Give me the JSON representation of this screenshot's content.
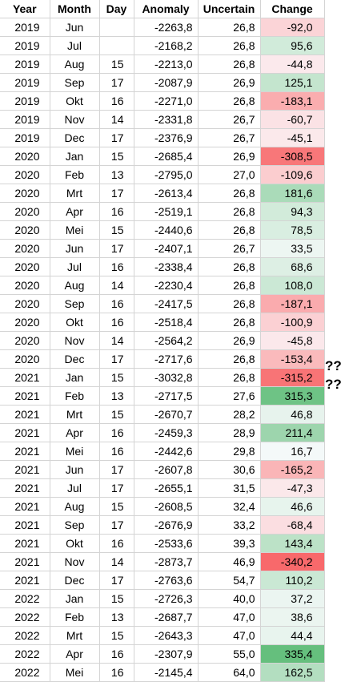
{
  "headers": [
    "Year",
    "Month",
    "Day",
    "Anomaly",
    "Uncertain",
    "Change"
  ],
  "rows": [
    [
      "2019",
      "Jun",
      "",
      "-2263,8",
      "26,8",
      "-92,0"
    ],
    [
      "2019",
      "Jul",
      "",
      "-2168,2",
      "26,8",
      "95,6"
    ],
    [
      "2019",
      "Aug",
      "15",
      "-2213,0",
      "26,8",
      "-44,8"
    ],
    [
      "2019",
      "Sep",
      "17",
      "-2087,9",
      "26,9",
      "125,1"
    ],
    [
      "2019",
      "Okt",
      "16",
      "-2271,0",
      "26,8",
      "-183,1"
    ],
    [
      "2019",
      "Nov",
      "14",
      "-2331,8",
      "26,7",
      "-60,7"
    ],
    [
      "2019",
      "Dec",
      "17",
      "-2376,9",
      "26,7",
      "-45,1"
    ],
    [
      "2020",
      "Jan",
      "15",
      "-2685,4",
      "26,9",
      "-308,5"
    ],
    [
      "2020",
      "Feb",
      "13",
      "-2795,0",
      "27,0",
      "-109,6"
    ],
    [
      "2020",
      "Mrt",
      "17",
      "-2613,4",
      "26,8",
      "181,6"
    ],
    [
      "2020",
      "Apr",
      "16",
      "-2519,1",
      "26,8",
      "94,3"
    ],
    [
      "2020",
      "Mei",
      "15",
      "-2440,6",
      "26,8",
      "78,5"
    ],
    [
      "2020",
      "Jun",
      "17",
      "-2407,1",
      "26,7",
      "33,5"
    ],
    [
      "2020",
      "Jul",
      "16",
      "-2338,4",
      "26,8",
      "68,6"
    ],
    [
      "2020",
      "Aug",
      "14",
      "-2230,4",
      "26,8",
      "108,0"
    ],
    [
      "2020",
      "Sep",
      "16",
      "-2417,5",
      "26,8",
      "-187,1"
    ],
    [
      "2020",
      "Okt",
      "16",
      "-2518,4",
      "26,8",
      "-100,9"
    ],
    [
      "2020",
      "Nov",
      "14",
      "-2564,2",
      "26,9",
      "-45,8"
    ],
    [
      "2020",
      "Dec",
      "17",
      "-2717,6",
      "26,8",
      "-153,4"
    ],
    [
      "2021",
      "Jan",
      "15",
      "-3032,8",
      "26,8",
      "-315,2"
    ],
    [
      "2021",
      "Feb",
      "13",
      "-2717,5",
      "27,6",
      "315,3"
    ],
    [
      "2021",
      "Mrt",
      "15",
      "-2670,7",
      "28,2",
      "46,8"
    ],
    [
      "2021",
      "Apr",
      "16",
      "-2459,3",
      "28,9",
      "211,4"
    ],
    [
      "2021",
      "Mei",
      "16",
      "-2442,6",
      "29,8",
      "16,7"
    ],
    [
      "2021",
      "Jun",
      "17",
      "-2607,8",
      "30,6",
      "-165,2"
    ],
    [
      "2021",
      "Jul",
      "17",
      "-2655,1",
      "31,5",
      "-47,3"
    ],
    [
      "2021",
      "Aug",
      "15",
      "-2608,5",
      "32,4",
      "46,6"
    ],
    [
      "2021",
      "Sep",
      "17",
      "-2676,9",
      "33,2",
      "-68,4"
    ],
    [
      "2021",
      "Okt",
      "16",
      "-2533,6",
      "39,3",
      "143,4"
    ],
    [
      "2021",
      "Nov",
      "14",
      "-2873,7",
      "46,9",
      "-340,2"
    ],
    [
      "2021",
      "Dec",
      "17",
      "-2763,6",
      "54,7",
      "110,2"
    ],
    [
      "2022",
      "Jan",
      "15",
      "-2726,3",
      "40,0",
      "37,2"
    ],
    [
      "2022",
      "Feb",
      "13",
      "-2687,7",
      "47,0",
      "38,6"
    ],
    [
      "2022",
      "Mrt",
      "15",
      "-2643,3",
      "47,0",
      "44,4"
    ],
    [
      "2022",
      "Apr",
      "16",
      "-2307,9",
      "55,0",
      "335,4"
    ],
    [
      "2022",
      "Mei",
      "16",
      "-2145,4",
      "64,0",
      "162,5"
    ]
  ],
  "annotations": [
    "??",
    "??"
  ],
  "colors": {
    "positive_max": "#63be7b",
    "negative_max": "#f8696b",
    "neutral": "#fcfcff"
  },
  "change_scale_max": 340.2
}
